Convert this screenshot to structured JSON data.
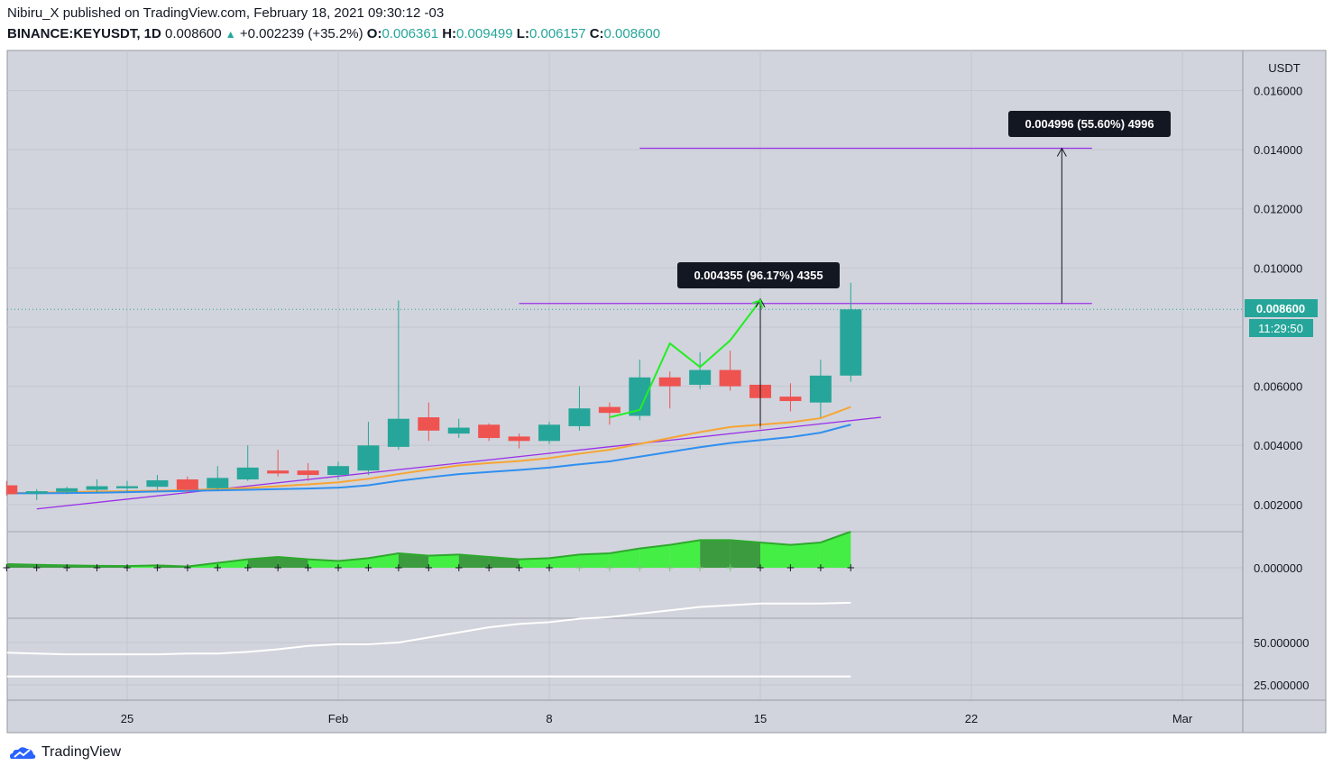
{
  "header": {
    "line1": "Nibiru_X published on TradingView.com, February 18, 2021 09:30:12 -03",
    "symbol": "BINANCE:KEYUSDT, 1D",
    "last": "0.008600",
    "change": "+0.002239 (+35.2%)",
    "o_label": "O:",
    "o": "0.006361",
    "h_label": "H:",
    "h": "0.009499",
    "l_label": "L:",
    "l": "0.006157",
    "c_label": "C:",
    "c": "0.008600"
  },
  "axis": {
    "currency": "USDT",
    "price_ticks": [
      "0.016000",
      "0.014000",
      "0.012000",
      "0.010000",
      "0.006000",
      "0.004000",
      "0.002000"
    ],
    "price_tick_values": [
      0.016,
      0.014,
      0.012,
      0.01,
      0.006,
      0.004,
      0.002
    ],
    "osc_tick": "0.000000",
    "rsi_ticks": [
      "50.000000",
      "25.000000"
    ],
    "rsi_tick_values": [
      50,
      25
    ],
    "x_ticks": [
      "25",
      "Feb",
      "8",
      "15",
      "22",
      "Mar"
    ],
    "x_tick_days": [
      25,
      32,
      39,
      46,
      53,
      60
    ],
    "last_price_label": "0.008600",
    "countdown": "11:29:50"
  },
  "annotations": {
    "measure1": "0.004355 (96.17%) 4355",
    "measure2": "0.004996 (55.60%) 4996"
  },
  "colors": {
    "up": "#26a69a",
    "down": "#ef5350",
    "ema_orange": "#f7a534",
    "ema_blue": "#2f8ff0",
    "trend": "#9b30e8",
    "zigzag": "#22ee22",
    "osc_light": "#44ee44",
    "osc_dark": "#3b9b3e",
    "rsi": "#ffffff",
    "bg": "#d1d4dc"
  },
  "footer": {
    "brand": "TradingView"
  },
  "chart_data": {
    "type": "candlestick",
    "title": "BINANCE:KEYUSDT, 1D",
    "ylabel": "USDT",
    "ylim": [
      0.0015,
      0.0175
    ],
    "x_unit": "day of 2021 (Jan 1 = 1)",
    "candles": [
      {
        "day": 21,
        "o": 0.00265,
        "h": 0.0028,
        "l": 0.0023,
        "c": 0.00235
      },
      {
        "day": 22,
        "o": 0.00237,
        "h": 0.00252,
        "l": 0.00215,
        "c": 0.00245
      },
      {
        "day": 23,
        "o": 0.00243,
        "h": 0.0026,
        "l": 0.00235,
        "c": 0.00255
      },
      {
        "day": 24,
        "o": 0.0025,
        "h": 0.00285,
        "l": 0.0024,
        "c": 0.00262
      },
      {
        "day": 25,
        "o": 0.00255,
        "h": 0.0028,
        "l": 0.00245,
        "c": 0.00262
      },
      {
        "day": 26,
        "o": 0.0026,
        "h": 0.003,
        "l": 0.0025,
        "c": 0.00282
      },
      {
        "day": 27,
        "o": 0.00285,
        "h": 0.00295,
        "l": 0.0024,
        "c": 0.0025
      },
      {
        "day": 28,
        "o": 0.00255,
        "h": 0.0033,
        "l": 0.00245,
        "c": 0.0029
      },
      {
        "day": 29,
        "o": 0.00285,
        "h": 0.004,
        "l": 0.0028,
        "c": 0.00325
      },
      {
        "day": 30,
        "o": 0.00315,
        "h": 0.00385,
        "l": 0.00295,
        "c": 0.00305
      },
      {
        "day": 31,
        "o": 0.00315,
        "h": 0.0034,
        "l": 0.0028,
        "c": 0.003
      },
      {
        "day": 32,
        "o": 0.003,
        "h": 0.00345,
        "l": 0.00285,
        "c": 0.0033
      },
      {
        "day": 33,
        "o": 0.00315,
        "h": 0.0048,
        "l": 0.003,
        "c": 0.004
      },
      {
        "day": 34,
        "o": 0.00395,
        "h": 0.0089,
        "l": 0.00385,
        "c": 0.0049
      },
      {
        "day": 35,
        "o": 0.00495,
        "h": 0.00545,
        "l": 0.00415,
        "c": 0.0045
      },
      {
        "day": 36,
        "o": 0.0044,
        "h": 0.0049,
        "l": 0.00425,
        "c": 0.0046
      },
      {
        "day": 37,
        "o": 0.0047,
        "h": 0.00475,
        "l": 0.00415,
        "c": 0.00425
      },
      {
        "day": 38,
        "o": 0.0043,
        "h": 0.0044,
        "l": 0.0039,
        "c": 0.00415
      },
      {
        "day": 39,
        "o": 0.00415,
        "h": 0.0048,
        "l": 0.00405,
        "c": 0.0047
      },
      {
        "day": 40,
        "o": 0.00465,
        "h": 0.006,
        "l": 0.0045,
        "c": 0.00525
      },
      {
        "day": 41,
        "o": 0.0053,
        "h": 0.00545,
        "l": 0.0047,
        "c": 0.0051
      },
      {
        "day": 42,
        "o": 0.005,
        "h": 0.0069,
        "l": 0.00485,
        "c": 0.0063
      },
      {
        "day": 43,
        "o": 0.0063,
        "h": 0.0065,
        "l": 0.00525,
        "c": 0.006
      },
      {
        "day": 44,
        "o": 0.00605,
        "h": 0.00715,
        "l": 0.0059,
        "c": 0.00655
      },
      {
        "day": 45,
        "o": 0.00655,
        "h": 0.0072,
        "l": 0.00585,
        "c": 0.006
      },
      {
        "day": 46,
        "o": 0.00605,
        "h": 0.0062,
        "l": 0.00455,
        "c": 0.0056
      },
      {
        "day": 47,
        "o": 0.00565,
        "h": 0.0061,
        "l": 0.00515,
        "c": 0.0055
      },
      {
        "day": 48,
        "o": 0.00545,
        "h": 0.0069,
        "l": 0.00495,
        "c": 0.00636
      },
      {
        "day": 49,
        "o": 0.006361,
        "h": 0.009499,
        "l": 0.006157,
        "c": 0.0086
      }
    ],
    "ema_orange": [
      0.00238,
      0.0024,
      0.00242,
      0.00244,
      0.00245,
      0.00247,
      0.00249,
      0.00252,
      0.00256,
      0.00262,
      0.00268,
      0.00275,
      0.00287,
      0.00303,
      0.00318,
      0.00332,
      0.0034,
      0.00347,
      0.00357,
      0.00372,
      0.00385,
      0.00405,
      0.00425,
      0.00445,
      0.00462,
      0.0047,
      0.00478,
      0.00492,
      0.0053
    ],
    "ema_blue": [
      0.00238,
      0.00238,
      0.00239,
      0.0024,
      0.00242,
      0.00244,
      0.00246,
      0.00248,
      0.0025,
      0.00252,
      0.00254,
      0.00257,
      0.00265,
      0.0028,
      0.00292,
      0.00303,
      0.0031,
      0.00317,
      0.00325,
      0.00336,
      0.00346,
      0.00362,
      0.00378,
      0.00394,
      0.00408,
      0.00418,
      0.00428,
      0.00443,
      0.0047
    ],
    "trendlines": [
      {
        "from": {
          "day": 22,
          "price": 0.00185
        },
        "to": {
          "day": 50,
          "price": 0.00495
        }
      },
      {
        "from": {
          "day": 38,
          "price": 0.0088
        },
        "to": {
          "day": 57,
          "price": 0.0088
        }
      },
      {
        "from": {
          "day": 42,
          "price": 0.01405
        },
        "to": {
          "day": 57,
          "price": 0.01405
        }
      }
    ],
    "zigzag": [
      {
        "day": 41,
        "price": 0.00495
      },
      {
        "day": 42,
        "price": 0.0052
      },
      {
        "day": 43,
        "price": 0.00745
      },
      {
        "day": 44,
        "price": 0.00665
      },
      {
        "day": 45,
        "price": 0.00755
      },
      {
        "day": 46,
        "price": 0.0089
      }
    ],
    "measures": [
      {
        "day": 46,
        "from": 0.00465,
        "to": 0.00895,
        "label": "0.004355 (96.17%) 4355"
      },
      {
        "day": 56,
        "from": 0.0088,
        "to": 0.01405,
        "label": "0.004996 (55.60%) 4996"
      }
    ],
    "oscillator": {
      "values": [
        0.00015,
        0.00012,
        0.0001,
        8e-05,
        7e-05,
        0.0001,
        5e-05,
        0.0002,
        0.00035,
        0.00045,
        0.00035,
        0.00028,
        0.0004,
        0.0006,
        0.0005,
        0.00055,
        0.00045,
        0.00035,
        0.0004,
        0.00055,
        0.0006,
        0.0008,
        0.00095,
        0.00115,
        0.00115,
        0.00105,
        0.00095,
        0.00105,
        0.0015
      ],
      "shade": [
        "dark",
        "dark",
        "dark",
        "dark",
        "dark",
        "light",
        "dark",
        "light",
        "light",
        "dark",
        "dark",
        "light",
        "light",
        "light",
        "dark",
        "light",
        "dark",
        "dark",
        "light",
        "light",
        "light",
        "light",
        "light",
        "light",
        "dark",
        "dark",
        "light",
        "light",
        "light"
      ]
    },
    "rsi": [
      44,
      43.5,
      43,
      43,
      43,
      43,
      43.5,
      43.5,
      44.5,
      46,
      48,
      49,
      49,
      50,
      53,
      56,
      59,
      61,
      62,
      64,
      65,
      67,
      69,
      71,
      72,
      73,
      73,
      73,
      73.5
    ],
    "rsi_baseline": 30
  }
}
